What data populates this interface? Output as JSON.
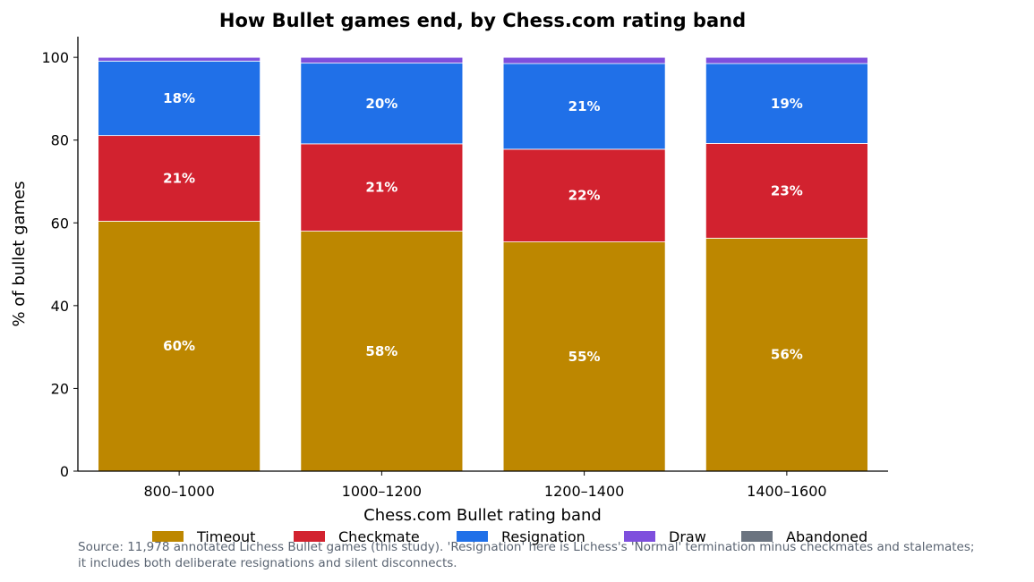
{
  "chart_data": {
    "type": "bar",
    "stacked": true,
    "title": "How Bullet games end, by Chess.com rating band",
    "xlabel": "Chess.com Bullet rating band",
    "ylabel": "% of bullet games",
    "categories": [
      "800–1000",
      "1000–1200",
      "1200–1400",
      "1400–1600"
    ],
    "ylim": [
      0,
      105
    ],
    "yticks": [
      0,
      20,
      40,
      60,
      80,
      100
    ],
    "grid": false,
    "legend_position": "bottom",
    "series": [
      {
        "name": "Timeout",
        "color": "#bd8700",
        "values": [
          60.4,
          58.0,
          55.4,
          56.3
        ],
        "labels": [
          "60%",
          "58%",
          "55%",
          "56%"
        ]
      },
      {
        "name": "Checkmate",
        "color": "#d2222f",
        "values": [
          20.7,
          21.1,
          22.4,
          22.9
        ],
        "labels": [
          "21%",
          "21%",
          "22%",
          "23%"
        ]
      },
      {
        "name": "Resignation",
        "color": "#2070e8",
        "values": [
          18.0,
          19.5,
          20.7,
          19.3
        ],
        "labels": [
          "18%",
          "20%",
          "21%",
          "19%"
        ]
      },
      {
        "name": "Draw",
        "color": "#7e4fdd",
        "values": [
          0.9,
          1.4,
          1.5,
          1.5
        ],
        "labels": [
          "",
          "",
          "",
          ""
        ]
      },
      {
        "name": "Abandoned",
        "color": "#6b7480",
        "values": [
          0,
          0,
          0,
          0
        ],
        "labels": [
          "",
          "",
          "",
          ""
        ]
      }
    ],
    "source_lines": [
      "Source: 11,978 annotated Lichess Bullet games (this study). 'Resignation' here is Lichess's 'Normal' termination minus checkmates and stalemates;",
      "it includes both deliberate resignations and silent disconnects."
    ]
  }
}
